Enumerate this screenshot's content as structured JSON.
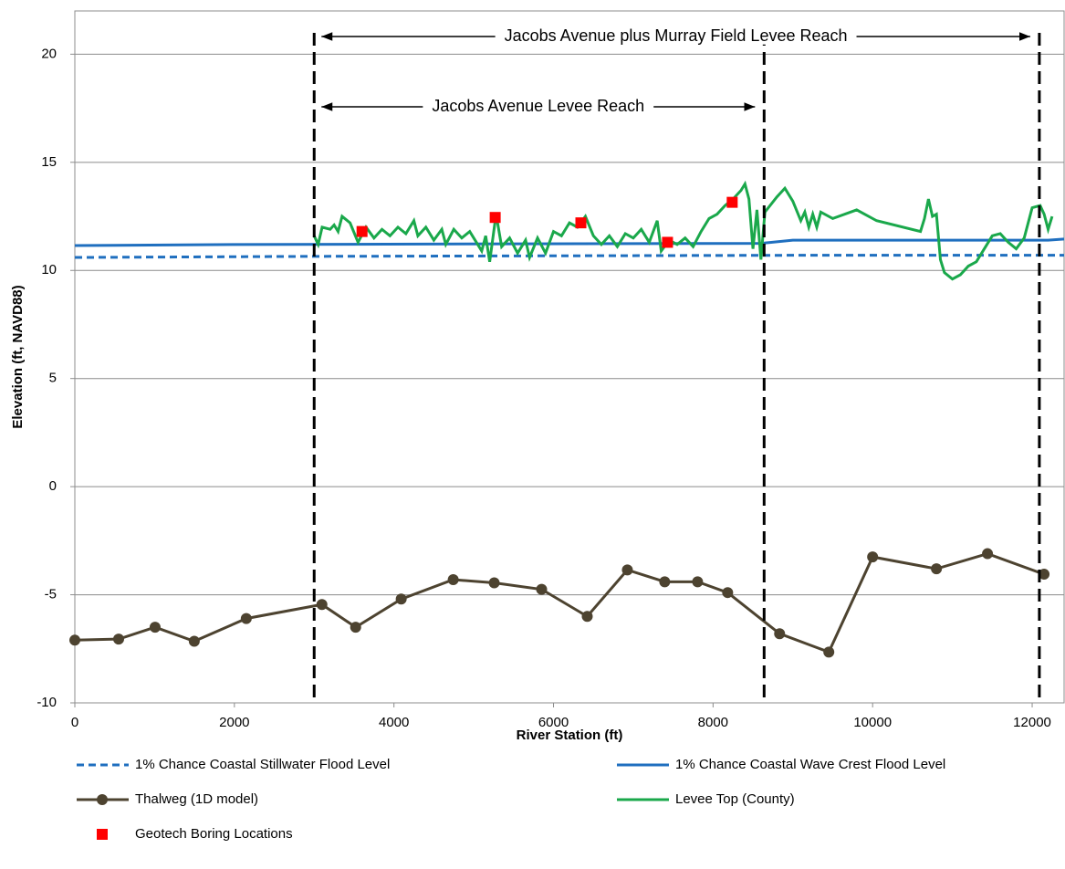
{
  "chart_data": {
    "type": "line",
    "x_label": "River Station (ft)",
    "y_label": "Elevation (ft, NAVD88)",
    "xlim": [
      0,
      12400
    ],
    "ylim": [
      -10,
      22
    ],
    "xticks": [
      0,
      2000,
      4000,
      6000,
      8000,
      10000,
      12000
    ],
    "yticks": [
      -10,
      -5,
      0,
      5,
      10,
      15,
      20
    ],
    "grid": true,
    "series": [
      {
        "name": "1% Chance Coastal  Stillwater  Flood Level",
        "color": "#1f6fbf",
        "style": "dashed",
        "x": [
          0,
          3000,
          9000,
          12400
        ],
        "values": [
          10.6,
          10.65,
          10.7,
          10.7
        ]
      },
      {
        "name": "1% Chance Coastal  Wave Crest Flood Level",
        "color": "#1f6fbf",
        "style": "solid",
        "x": [
          0,
          2000,
          8600,
          9000,
          12200,
          12400
        ],
        "values": [
          11.15,
          11.2,
          11.25,
          11.4,
          11.4,
          11.45
        ]
      },
      {
        "name": "Thalweg (1D model)",
        "color": "#4d4330",
        "style": "line-markers",
        "x": [
          0,
          549,
          1006,
          1497,
          2149,
          3097,
          3520,
          4091,
          4743,
          5257,
          5851,
          6423,
          6926,
          7394,
          7806,
          8183,
          8834,
          9451,
          10000,
          10800,
          11440,
          12149
        ],
        "values": [
          -7.1,
          -7.05,
          -6.5,
          -7.15,
          -6.1,
          -5.45,
          -6.5,
          -5.2,
          -4.3,
          -4.45,
          -4.75,
          -6.0,
          -3.85,
          -4.4,
          -4.4,
          -4.9,
          -6.8,
          -7.65,
          -3.25,
          -3.8,
          -3.1,
          -4.05
        ]
      },
      {
        "name": "Levee Top (County)",
        "color": "#1aa84b",
        "style": "solid",
        "x": [
          3000,
          3050,
          3100,
          3200,
          3250,
          3300,
          3350,
          3450,
          3550,
          3650,
          3750,
          3850,
          3950,
          4050,
          4150,
          4250,
          4300,
          4400,
          4500,
          4600,
          4650,
          4750,
          4850,
          4950,
          5050,
          5100,
          5150,
          5200,
          5280,
          5350,
          5450,
          5550,
          5650,
          5700,
          5800,
          5900,
          6000,
          6100,
          6200,
          6300,
          6400,
          6500,
          6600,
          6700,
          6800,
          6900,
          7000,
          7100,
          7200,
          7300,
          7350,
          7450,
          7550,
          7650,
          7750,
          7850,
          7950,
          8050,
          8150,
          8250,
          8350,
          8400,
          8450,
          8500,
          8550,
          8600,
          8650,
          8800,
          8900,
          9000,
          9100,
          9150,
          9200,
          9250,
          9300,
          9350,
          9500,
          9800,
          10050,
          10600,
          10650,
          10700,
          10750,
          10800,
          10850,
          10900,
          11000,
          11100,
          11200,
          11300,
          11400,
          11500,
          11600,
          11700,
          11800,
          11900,
          12000,
          12100,
          12150,
          12200,
          12250
        ],
        "values": [
          11.6,
          11.2,
          12.0,
          11.9,
          12.1,
          11.8,
          12.5,
          12.2,
          11.3,
          12.0,
          11.5,
          11.9,
          11.6,
          12.0,
          11.7,
          12.3,
          11.6,
          12.0,
          11.4,
          11.9,
          11.2,
          11.9,
          11.5,
          11.8,
          11.2,
          10.9,
          11.6,
          10.4,
          12.6,
          11.1,
          11.5,
          10.8,
          11.4,
          10.6,
          11.5,
          10.8,
          11.8,
          11.6,
          12.2,
          12.0,
          12.5,
          11.6,
          11.2,
          11.6,
          11.1,
          11.7,
          11.5,
          11.9,
          11.3,
          12.3,
          10.9,
          11.4,
          11.2,
          11.5,
          11.1,
          11.8,
          12.4,
          12.6,
          13.0,
          13.3,
          13.7,
          14.0,
          13.3,
          11.0,
          12.8,
          10.5,
          12.7,
          13.4,
          13.8,
          13.2,
          12.3,
          12.7,
          12.0,
          12.6,
          12.0,
          12.7,
          12.4,
          12.8,
          12.3,
          11.8,
          12.4,
          13.3,
          12.5,
          12.6,
          10.5,
          9.9,
          9.6,
          9.8,
          10.2,
          10.4,
          11.0,
          11.6,
          11.7,
          11.3,
          11.0,
          11.5,
          12.9,
          13.0,
          12.6,
          11.9,
          12.5
        ]
      },
      {
        "name": "Geotech Boring Locations",
        "color": "#ff0000",
        "style": "markers",
        "x": [
          3600,
          5269,
          6343,
          7429,
          8240
        ],
        "values": [
          11.8,
          12.45,
          12.2,
          11.3,
          13.15
        ]
      }
    ],
    "vlines": [
      3000,
      8640,
      12090
    ],
    "reaches": [
      {
        "label": "Jacobs Avenue plus Murray Field Levee Reach",
        "start": 3000,
        "end": 12090
      },
      {
        "label": "Jacobs Avenue Levee Reach",
        "start": 3000,
        "end": 8640
      }
    ]
  }
}
